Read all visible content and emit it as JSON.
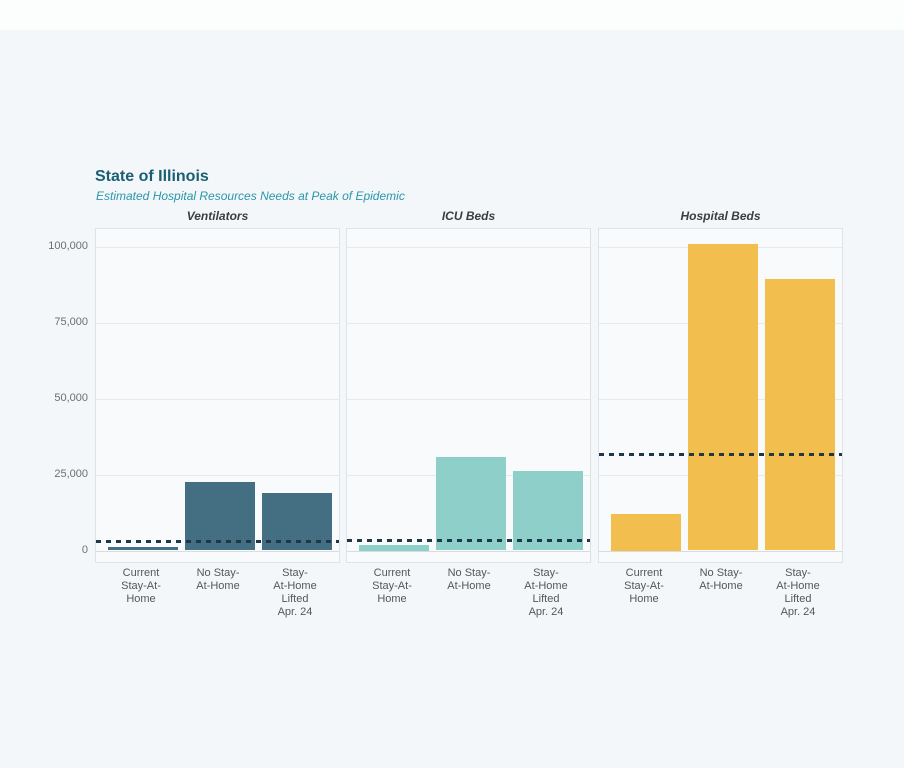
{
  "page": {
    "title": "State of Illinois",
    "subtitle": "Estimated Hospital Resources Needs at Peak of Epidemic"
  },
  "chart_data": {
    "type": "bar",
    "title": "State of Illinois",
    "subtitle": "Estimated Hospital Resources Needs at Peak of Epidemic",
    "categories": [
      "Current Stay-At-Home",
      "No Stay-At-Home",
      "Stay-At-Home Lifted Apr. 24"
    ],
    "category_tick_labels": [
      "Current\nStay-At-\nHome",
      "No Stay-\nAt-Home",
      "Stay-\nAt-Home\nLifted\nApr. 24"
    ],
    "panels": [
      {
        "title": "Ventilators",
        "bar_color": "#446e82",
        "values": [
          1300,
          22500,
          19000
        ],
        "capacity_line": 3100
      },
      {
        "title": "ICU Beds",
        "bar_color": "#8ecfc9",
        "values": [
          1800,
          30800,
          26300
        ],
        "capacity_line": 3400
      },
      {
        "title": "Hospital Beds",
        "bar_color": "#f2bf4e",
        "values": [
          12000,
          101000,
          89500
        ],
        "capacity_line": 31500
      }
    ],
    "y_axis": {
      "ticks": [
        0,
        25000,
        50000,
        75000,
        100000
      ],
      "tick_labels": [
        "0",
        "25,000",
        "50,000",
        "75,000",
        "100,000"
      ],
      "max": 100000
    },
    "dashed_line_color": "#1d3849",
    "grid": true,
    "legend": false,
    "colors": {
      "title": "#1b5e74",
      "subtitle": "#2b96aa",
      "ventilators_bar": "#446e82",
      "icu_bar": "#8ecfc9",
      "hospital_bar": "#f2bf4e",
      "capacity_dash": "#1d3849"
    }
  }
}
